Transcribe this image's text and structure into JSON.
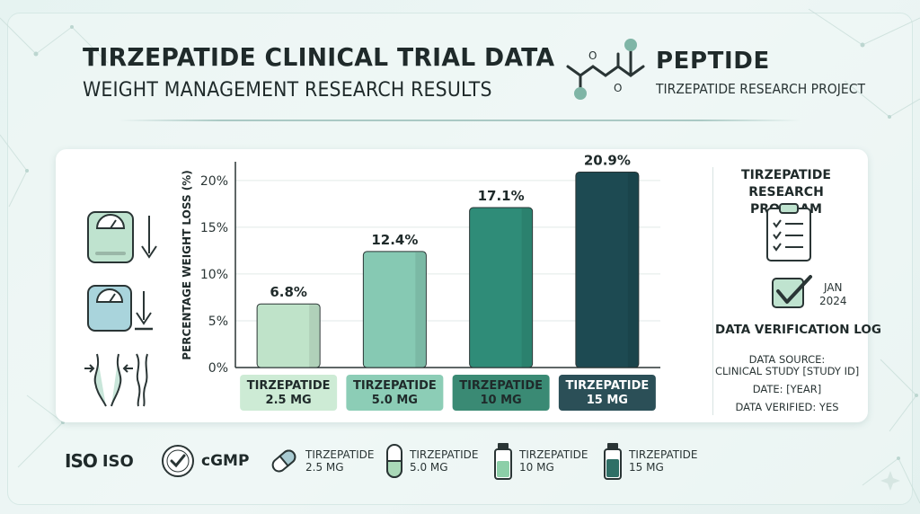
{
  "header": {
    "title": "TIRZEPATIDE CLINICAL TRIAL DATA",
    "subtitle": "WEIGHT MANAGEMENT RESEARCH RESULTS",
    "brand_name": "PEPTIDE",
    "brand_sub": "TIRZEPATIDE RESEARCH PROJECT"
  },
  "chart_data": {
    "type": "bar",
    "categories": [
      [
        "TIRZEPATIDE",
        "2.5 MG"
      ],
      [
        "TIRZEPATIDE",
        "5.0 MG"
      ],
      [
        "TIRZEPATIDE",
        "10 MG"
      ],
      [
        "TIRZEPATIDE",
        "15 MG"
      ]
    ],
    "values": [
      6.8,
      12.4,
      17.1,
      20.9
    ],
    "value_labels": [
      "6.8%",
      "12.4%",
      "17.1%",
      "20.9%"
    ],
    "ylabel": "PERCENTAGE WEIGHT LOSS (%)",
    "yticks": [
      "0%",
      "5%",
      "10%",
      "15%",
      "20%"
    ],
    "ytick_values": [
      0,
      5,
      10,
      15,
      20
    ],
    "ylim": [
      0,
      22
    ],
    "grid": true,
    "bar_colors": [
      "#bfe3c9",
      "#86c9b3",
      "#2f8c78",
      "#1d4a52"
    ],
    "label_colors": [
      "#cdebd5",
      "#8ccdb6",
      "#3a8a74",
      "#2b4f57"
    ],
    "label_text_colors": [
      "#1f2a2a",
      "#1f2a2a",
      "#1f2a2a",
      "#ffffff"
    ]
  },
  "sidebar": {
    "title_line1": "TIRZEPATIDE",
    "title_line2": "RESEARCH PROGRAM",
    "date_month": "JAN",
    "date_year": "2024",
    "log_title": "DATA VERIFICATION LOG",
    "source_label": "DATA SOURCE:",
    "source_value": "CLINICAL STUDY [STUDY ID]",
    "date_line": "DATE: [YEAR]",
    "verified_line": "DATA VERIFIED: YES"
  },
  "footer": {
    "iso_logo": "ISO",
    "iso_label": "ISO",
    "cgmp_label": "cGMP",
    "products": [
      {
        "name": "TIRZEPATIDE",
        "dose": "2.5 MG",
        "icon": "capsule-icon"
      },
      {
        "name": "TIRZEPATIDE",
        "dose": "5.0 MG",
        "icon": "capsule-icon"
      },
      {
        "name": "TIRZEPATIDE",
        "dose": "10 MG",
        "icon": "vial-icon"
      },
      {
        "name": "TIRZEPATIDE",
        "dose": "15 MG",
        "icon": "vial-icon"
      }
    ]
  },
  "colors": {
    "accent": "#2f8c78",
    "dark": "#1d4a52",
    "light": "#bfe3c9"
  }
}
